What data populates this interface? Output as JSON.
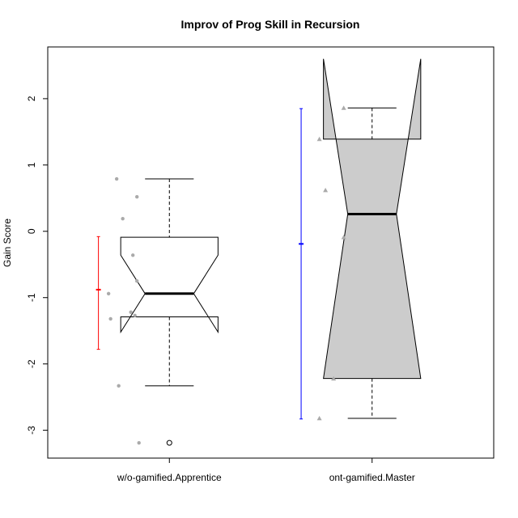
{
  "chart_data": {
    "type": "box",
    "title": "Improv of Prog Skill in Recursion",
    "xlabel": "",
    "ylabel": "Gain Score",
    "ylim": [
      -3.42,
      2.78
    ],
    "yticks": [
      -3,
      -2,
      -1,
      0,
      1,
      2
    ],
    "ytick_labels": [
      "-3",
      "-2",
      "-1",
      "0",
      "1",
      "2"
    ],
    "categories": [
      "w/o-gamified.Apprentice",
      "ont-gamified.Master"
    ],
    "colors": {
      "box_fill_0": "#ffffff",
      "box_fill_1": "#cccccc",
      "points_0": "#aaaaaa",
      "points_1": "#aaaaaa",
      "errbar_0": "#ff0000",
      "errbar_1": "#0000ff"
    },
    "point_shapes": [
      "circle",
      "triangle"
    ],
    "boxes": [
      {
        "name": "w/o-gamified.Apprentice",
        "whisker_low": -2.33,
        "q1": -1.29,
        "median": -0.94,
        "q3": -0.09,
        "whisker_high": 0.79,
        "notch_low": -1.52,
        "notch_high": -0.36,
        "outliers": [
          -3.19
        ]
      },
      {
        "name": "ont-gamified.Master",
        "whisker_low": -2.82,
        "q1": -2.22,
        "median": 0.26,
        "q3": 1.39,
        "whisker_high": 1.86,
        "notch_low": -2.22,
        "notch_high": 2.6,
        "outliers": []
      }
    ],
    "points": [
      [
        {
          "x": 0.74,
          "y": 0.79
        },
        {
          "x": 0.84,
          "y": 0.52
        },
        {
          "x": 0.77,
          "y": 0.19
        },
        {
          "x": 0.82,
          "y": -0.36
        },
        {
          "x": 0.84,
          "y": -0.75
        },
        {
          "x": 0.7,
          "y": -0.94
        },
        {
          "x": 0.81,
          "y": -1.22
        },
        {
          "x": 0.83,
          "y": -1.27
        },
        {
          "x": 0.71,
          "y": -1.32
        },
        {
          "x": 0.75,
          "y": -2.33
        },
        {
          "x": 0.85,
          "y": -3.19
        }
      ],
      [
        {
          "x": 1.74,
          "y": 1.39
        },
        {
          "x": 1.86,
          "y": 1.86
        },
        {
          "x": 1.77,
          "y": 0.62
        },
        {
          "x": 1.86,
          "y": -0.09
        },
        {
          "x": 1.81,
          "y": -2.22
        },
        {
          "x": 1.74,
          "y": -2.82
        }
      ]
    ],
    "error_bars": [
      {
        "x": 0.65,
        "mean": -0.88,
        "low": -1.78,
        "high": -0.08
      },
      {
        "x": 1.65,
        "mean": -0.19,
        "low": -2.83,
        "high": 1.85
      }
    ]
  }
}
